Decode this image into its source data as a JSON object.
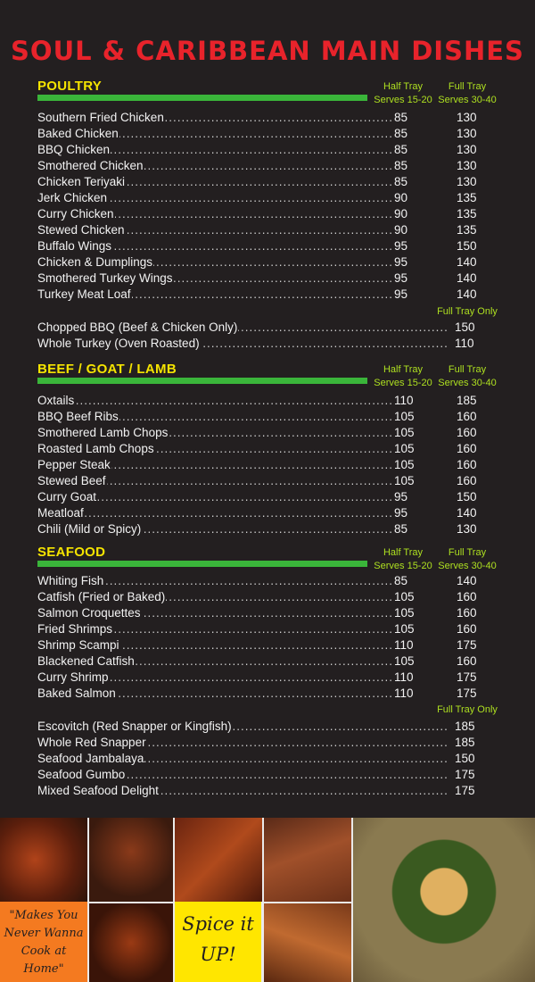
{
  "title": "SOUL & CARIBBEAN MAIN DISHES",
  "col_labels": {
    "half_line1": "Half Tray",
    "half_line2": "Serves 15-20",
    "full_line1": "Full Tray",
    "full_line2": "Serves 30-40",
    "full_only": "Full Tray Only"
  },
  "poultry": {
    "name": "POULTRY",
    "items": [
      {
        "name": "Southern Fried Chicken",
        "half": "85",
        "full": "130"
      },
      {
        "name": "Baked Chicken",
        "half": "85",
        "full": "130"
      },
      {
        "name": "BBQ Chicken",
        "half": "85",
        "full": "130"
      },
      {
        "name": "Smothered Chicken",
        "half": "85",
        "full": "130"
      },
      {
        "name": "Chicken Teriyaki",
        "half": "85",
        "full": "130"
      },
      {
        "name": "Jerk Chicken",
        "half": "90",
        "full": "135"
      },
      {
        "name": "Curry Chicken",
        "half": "90",
        "full": "135"
      },
      {
        "name": "Stewed Chicken",
        "half": "90",
        "full": "135"
      },
      {
        "name": "Buffalo Wings",
        "half": "95",
        "full": "150"
      },
      {
        "name": "Chicken & Dumplings",
        "half": "95",
        "full": "140"
      },
      {
        "name": "Smothered Turkey Wings",
        "half": "95",
        "full": "140"
      },
      {
        "name": "Turkey Meat Loaf",
        "half": "95",
        "full": "140"
      }
    ],
    "full_only_items": [
      {
        "name": "Chopped BBQ (Beef & Chicken Only)",
        "full": "150"
      },
      {
        "name": "Whole Turkey (Oven Roasted)",
        "full": "110"
      }
    ]
  },
  "beef": {
    "name": "BEEF / GOAT / LAMB",
    "items": [
      {
        "name": "Oxtails",
        "half": "110",
        "full": "185"
      },
      {
        "name": "BBQ Beef Ribs",
        "half": "105",
        "full": "160"
      },
      {
        "name": "Smothered  Lamb Chops",
        "half": "105",
        "full": "160"
      },
      {
        "name": "Roasted Lamb Chops",
        "half": "105",
        "full": "160"
      },
      {
        "name": "Pepper Steak",
        "half": "105",
        "full": "160"
      },
      {
        "name": "Stewed Beef",
        "half": "105",
        "full": "160"
      },
      {
        "name": "Curry Goat",
        "half": "95",
        "full": "150"
      },
      {
        "name": "Meatloaf",
        "half": "95",
        "full": "140"
      },
      {
        "name": "Chili (Mild or Spicy)",
        "half": "85",
        "full": "130"
      }
    ]
  },
  "seafood": {
    "name": "SEAFOOD",
    "items": [
      {
        "name": "Whiting Fish",
        "half": "85",
        "full": "140"
      },
      {
        "name": "Catfish (Fried or Baked)",
        "half": "105",
        "full": "160"
      },
      {
        "name": "Salmon Croquettes",
        "half": "105",
        "full": "160"
      },
      {
        "name": "Fried Shrimps",
        "half": "105",
        "full": "160"
      },
      {
        "name": "Shrimp Scampi",
        "half": "110",
        "full": "175"
      },
      {
        "name": "Blackened Catfish",
        "half": "105",
        "full": "160"
      },
      {
        "name": "Curry Shrimp",
        "half": "110",
        "full": "175"
      },
      {
        "name": "Baked Salmon",
        "half": "110",
        "full": "175"
      }
    ],
    "full_only_items": [
      {
        "name": "Escovitch (Red Snapper or Kingfish)",
        "full": "185"
      },
      {
        "name": "Whole Red Snapper",
        "full": "185"
      },
      {
        "name": "Seafood Jambalaya",
        "full": "150"
      },
      {
        "name": "Seafood Gumbo",
        "full": "175"
      },
      {
        "name": "Mixed Seafood Delight",
        "full": "175"
      }
    ]
  },
  "quote": "\"Makes You Never Wanna Cook at Home\"",
  "slogan": "Spice it UP!"
}
